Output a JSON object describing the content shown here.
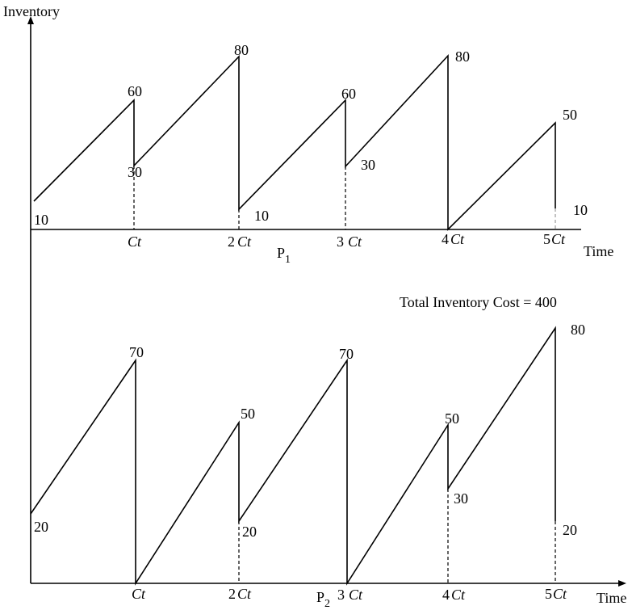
{
  "axes": {
    "y_label": "Inventory",
    "x_label_top": "Time",
    "x_label_bottom": "Time"
  },
  "top_panel": {
    "label": "P1",
    "label_main": "P",
    "label_sub": "1",
    "ticks": [
      {
        "num": "",
        "unit": "Ct"
      },
      {
        "num": "2",
        "unit": "Ct"
      },
      {
        "num": "3",
        "unit": "Ct"
      },
      {
        "num": "4",
        "unit": "Ct"
      },
      {
        "num": "5",
        "unit": "Ct"
      }
    ],
    "value_labels": [
      "10",
      "60",
      "30",
      "80",
      "10",
      "60",
      "30",
      "80",
      "50",
      "10"
    ],
    "cost_text": "Total  Inventory Cost = 400"
  },
  "bottom_panel": {
    "label": "P2",
    "label_main": "P",
    "label_sub": "2",
    "ticks": [
      {
        "num": "",
        "unit": "Ct"
      },
      {
        "num": "2",
        "unit": "Ct"
      },
      {
        "num": "3",
        "unit": "Ct"
      },
      {
        "num": "4",
        "unit": "Ct"
      },
      {
        "num": "5",
        "unit": "Ct"
      }
    ],
    "value_labels": [
      "20",
      "70",
      "50",
      "20",
      "70",
      "50",
      "30",
      "80",
      "20"
    ]
  }
}
